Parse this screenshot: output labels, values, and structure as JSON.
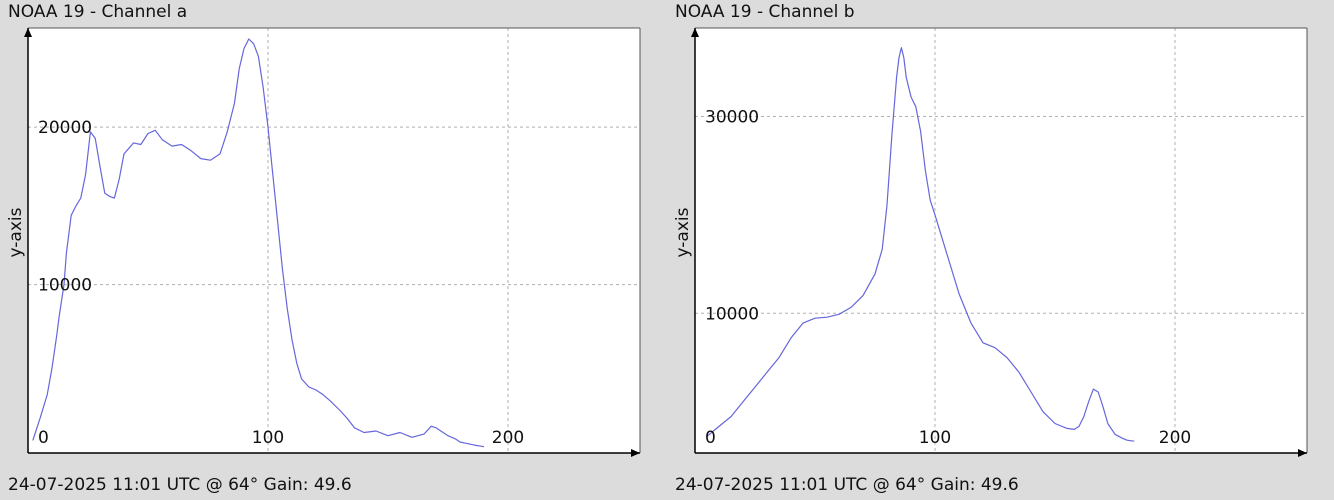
{
  "charts": [
    {
      "title": "NOAA 19 - Channel a",
      "footer": "24-07-2025 11:01 UTC @ 64° Gain: 49.6"
    },
    {
      "title": "NOAA 19 - Channel b",
      "footer": "24-07-2025 11:01 UTC @ 64° Gain: 49.6"
    }
  ],
  "colors": {
    "line": "#6666dd",
    "grid": "#b0b0b0",
    "background": "#dcdcdc",
    "plot_background": "#ffffff",
    "axis": "#000000"
  },
  "chart_data": [
    {
      "type": "line",
      "title": "NOAA 19 - Channel a",
      "xlabel": "",
      "ylabel": "y-axis",
      "xlim": [
        0,
        255
      ],
      "ylim": [
        -700,
        26300
      ],
      "x_ticks": [
        0,
        100,
        200
      ],
      "y_ticks": [
        10000,
        20000
      ],
      "grid": true,
      "legend": "none",
      "series": [
        {
          "x": [
            2,
            5,
            8,
            10,
            12,
            13,
            15,
            16,
            18,
            20,
            22,
            24,
            26,
            28,
            30,
            32,
            34,
            36,
            38,
            40,
            44,
            47,
            50,
            53,
            56,
            60,
            64,
            68,
            72,
            76,
            80,
            83,
            86,
            88,
            90,
            92,
            94,
            96,
            98,
            100,
            102,
            104,
            106,
            108,
            110,
            112,
            114,
            117,
            120,
            123,
            126,
            130,
            133,
            136,
            140,
            145,
            150,
            155,
            160,
            165,
            168,
            170,
            172,
            175,
            178,
            180,
            183,
            186,
            190
          ],
          "y": [
            100,
            1500,
            3000,
            4700,
            6800,
            8000,
            10000,
            12000,
            14400,
            15000,
            15500,
            17000,
            19700,
            19300,
            17500,
            15800,
            15600,
            15500,
            16700,
            18300,
            19000,
            18900,
            19600,
            19800,
            19200,
            18800,
            18900,
            18500,
            18000,
            17900,
            18300,
            19700,
            21500,
            23700,
            25000,
            25600,
            25300,
            24500,
            22500,
            20000,
            17000,
            14000,
            11000,
            8500,
            6500,
            5000,
            4000,
            3500,
            3300,
            3000,
            2600,
            2000,
            1500,
            900,
            600,
            700,
            400,
            600,
            300,
            500,
            1000,
            900,
            700,
            400,
            200,
            0,
            -100,
            -200,
            -300
          ]
        }
      ]
    },
    {
      "type": "line",
      "title": "NOAA 19 - Channel b",
      "xlabel": "",
      "ylabel": "y-axis",
      "xlim": [
        0,
        255
      ],
      "ylim": [
        -4200,
        39000
      ],
      "x_ticks": [
        0,
        100,
        200
      ],
      "y_ticks": [
        10000,
        30000
      ],
      "grid": true,
      "legend": "none",
      "series": [
        {
          "x": [
            5,
            10,
            15,
            20,
            25,
            30,
            35,
            40,
            45,
            50,
            55,
            60,
            65,
            70,
            75,
            78,
            80,
            82,
            84,
            85,
            86,
            87,
            88,
            90,
            92,
            94,
            96,
            98,
            100,
            105,
            110,
            115,
            120,
            125,
            130,
            135,
            140,
            145,
            150,
            155,
            158,
            160,
            162,
            164,
            166,
            168,
            170,
            172,
            175,
            178,
            180,
            183
          ],
          "y": [
            -2500,
            -1500,
            -500,
            1000,
            2500,
            4000,
            5500,
            7500,
            9000,
            9500,
            9600,
            9900,
            10600,
            11800,
            14000,
            16500,
            21000,
            28000,
            34000,
            36000,
            37000,
            36000,
            34000,
            32000,
            31000,
            28500,
            24500,
            21500,
            20000,
            16000,
            12000,
            9000,
            7000,
            6500,
            5500,
            4000,
            2000,
            0,
            -1200,
            -1700,
            -1800,
            -1500,
            -500,
            1000,
            2300,
            2000,
            500,
            -1200,
            -2300,
            -2700,
            -2900,
            -3000
          ]
        }
      ]
    }
  ]
}
